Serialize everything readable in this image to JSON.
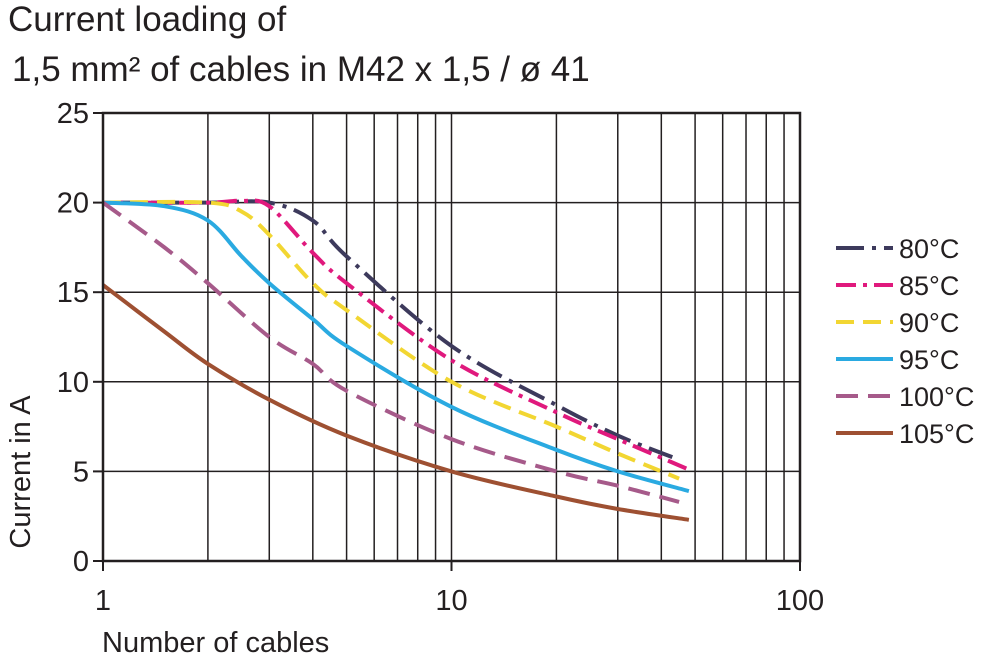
{
  "chart_data": {
    "type": "line",
    "title_lines": [
      "Current loading of",
      "1,5 mm² of cables in M42 x 1,5 / ø 41"
    ],
    "xlabel": "Number of cables",
    "ylabel": "Current in A",
    "x_scale": "log",
    "xlim": [
      1,
      100
    ],
    "ylim": [
      0,
      25
    ],
    "x_ticks": [
      1,
      10,
      100
    ],
    "x_tick_labels": [
      "1",
      "10",
      "100"
    ],
    "y_ticks": [
      0,
      5,
      10,
      15,
      20,
      25
    ],
    "y_tick_labels": [
      "0",
      "5",
      "10",
      "15",
      "20",
      "25"
    ],
    "grid": true,
    "legend_position": "right",
    "series": [
      {
        "name": "80°C",
        "color": "#3d3a5c",
        "dash": "28,8,4,8",
        "x": [
          1,
          2,
          3,
          4,
          5,
          10,
          20,
          30,
          43
        ],
        "y": [
          20,
          20,
          20,
          19,
          17,
          12,
          8.7,
          7,
          5.8
        ]
      },
      {
        "name": "85°C",
        "color": "#e0197d",
        "dash": "20,7,4,7",
        "x": [
          1,
          2,
          2.5,
          3,
          4,
          5,
          10,
          20,
          30,
          48
        ],
        "y": [
          20,
          20,
          20.1,
          19.8,
          17.2,
          15.5,
          11.2,
          8.3,
          6.8,
          5.1
        ]
      },
      {
        "name": "90°C",
        "color": "#f2d632",
        "dash": "18,9",
        "x": [
          1,
          2,
          2.5,
          3,
          4,
          5,
          10,
          20,
          30,
          45
        ],
        "y": [
          20,
          20,
          19.5,
          18.2,
          15.5,
          14,
          10,
          7.5,
          6,
          4.6
        ]
      },
      {
        "name": "95°C",
        "color": "#2aaae1",
        "dash": "",
        "x": [
          1,
          1.5,
          2,
          2.5,
          3,
          4,
          5,
          10,
          20,
          30,
          48
        ],
        "y": [
          20,
          19.8,
          19,
          17,
          15.5,
          13.5,
          12,
          8.6,
          6.2,
          5,
          3.9
        ]
      },
      {
        "name": "100°C",
        "color": "#a65a8a",
        "dash": "22,10",
        "x": [
          1,
          1.5,
          2,
          3,
          4,
          5,
          10,
          20,
          30,
          45
        ],
        "y": [
          20,
          17.5,
          15.5,
          12.5,
          11,
          9.5,
          6.8,
          5,
          4.2,
          3.3
        ]
      },
      {
        "name": "105°C",
        "color": "#9e5032",
        "dash": "",
        "x": [
          1,
          1.5,
          2,
          3,
          5,
          10,
          20,
          30,
          48
        ],
        "y": [
          15.4,
          12.8,
          11,
          9,
          7,
          5,
          3.6,
          2.9,
          2.3
        ]
      }
    ]
  }
}
